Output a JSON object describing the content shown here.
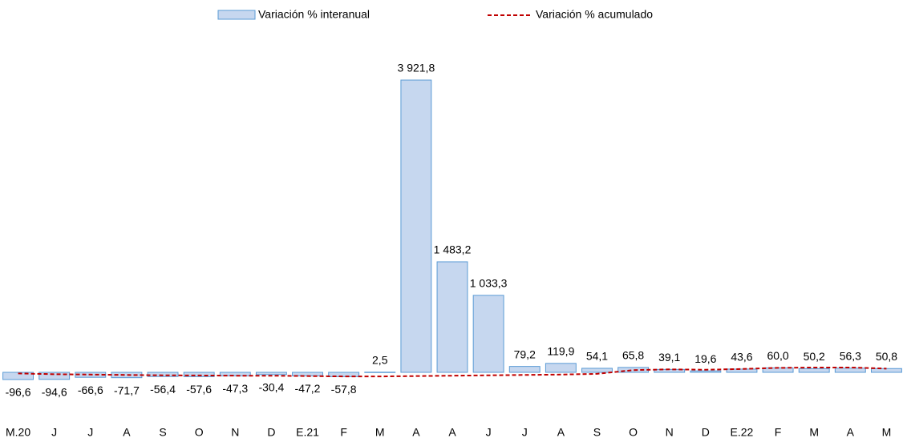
{
  "chart_data": {
    "type": "bar-line",
    "categories": [
      "M.20",
      "J",
      "J",
      "A",
      "S",
      "O",
      "N",
      "D",
      "E.21",
      "F",
      "M",
      "A",
      "A",
      "J",
      "J",
      "A",
      "S",
      "O",
      "N",
      "D",
      "E.22",
      "F",
      "M",
      "A",
      "M"
    ],
    "series": [
      {
        "name": "Variación % interanual",
        "type": "bar",
        "color": "#c6d7ef",
        "edge_color": "#5b9bd5",
        "values": [
          -96.6,
          -94.6,
          -66.6,
          -71.7,
          -56.4,
          -57.6,
          -47.3,
          -30.4,
          -47.2,
          -57.8,
          2.5,
          3921.8,
          1483.2,
          1033.3,
          79.2,
          119.9,
          54.1,
          65.8,
          39.1,
          19.6,
          43.6,
          60.0,
          50.2,
          56.3,
          50.8
        ],
        "value_labels": [
          "-96,6",
          "-94,6",
          "-66,6",
          "-71,7",
          "-56,4",
          "-57,6",
          "-47,3",
          "-30,4",
          "-47,2",
          "-57,8",
          "2,5",
          "3 921,8",
          "1 483,2",
          "1 033,3",
          "79,2",
          "119,9",
          "54,1",
          "65,8",
          "39,1",
          "19,6",
          "43,6",
          "60,0",
          "50,2",
          "56,3",
          "50,8"
        ]
      },
      {
        "name": "Variación % acumulado",
        "type": "line",
        "color": "#c00000",
        "dashed": true,
        "values": [
          -15,
          -25,
          -30,
          -35,
          -40,
          -42,
          -45,
          -45,
          -50,
          -55,
          -55,
          -50,
          -45,
          -40,
          -35,
          -30,
          -20,
          30,
          40,
          35,
          45,
          60,
          65,
          65,
          50
        ]
      }
    ]
  }
}
